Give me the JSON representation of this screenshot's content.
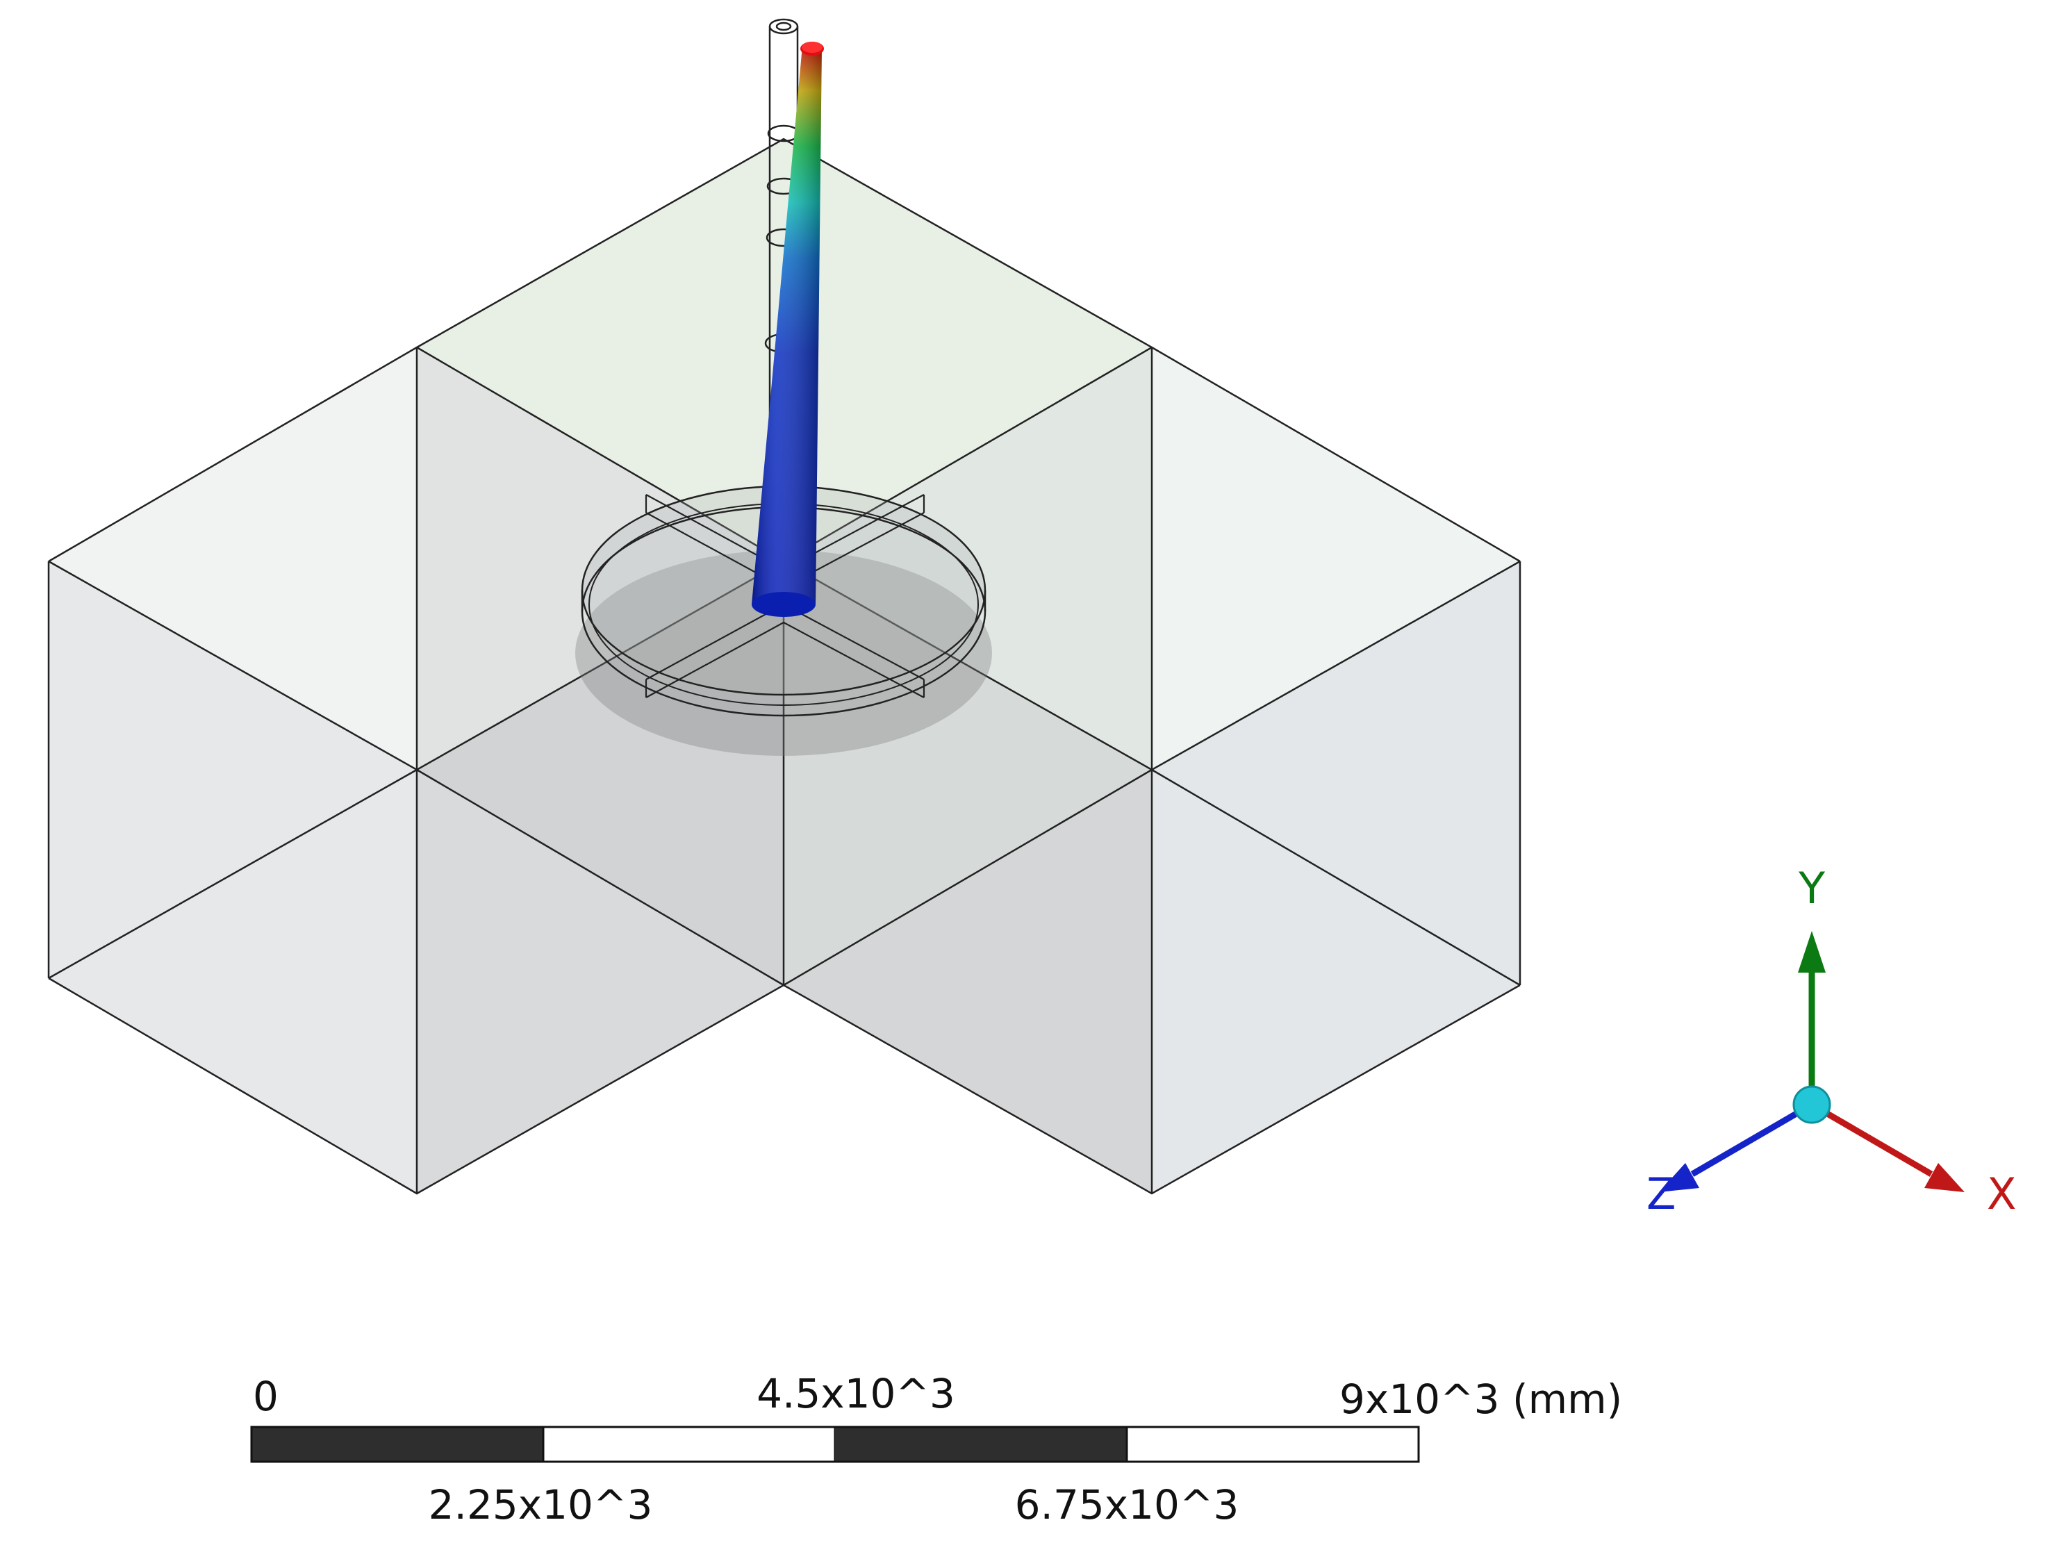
{
  "scale_bar": {
    "label_0": "0",
    "label_1": "2.25x10^3",
    "label_2": "4.5x10^3",
    "label_3": "6.75x10^3",
    "label_4": "9x10^3 (mm)"
  },
  "triad": {
    "y_label": "Y",
    "x_label": "X",
    "z_label": "Z",
    "colors": {
      "y": "#0c7a12",
      "x": "#c01818",
      "z": "#1424c8",
      "center": "#22c6d6"
    }
  },
  "legend_colors": {
    "low": "#0a1fb8",
    "mid": "#10c8a0",
    "high": "#e01010"
  }
}
